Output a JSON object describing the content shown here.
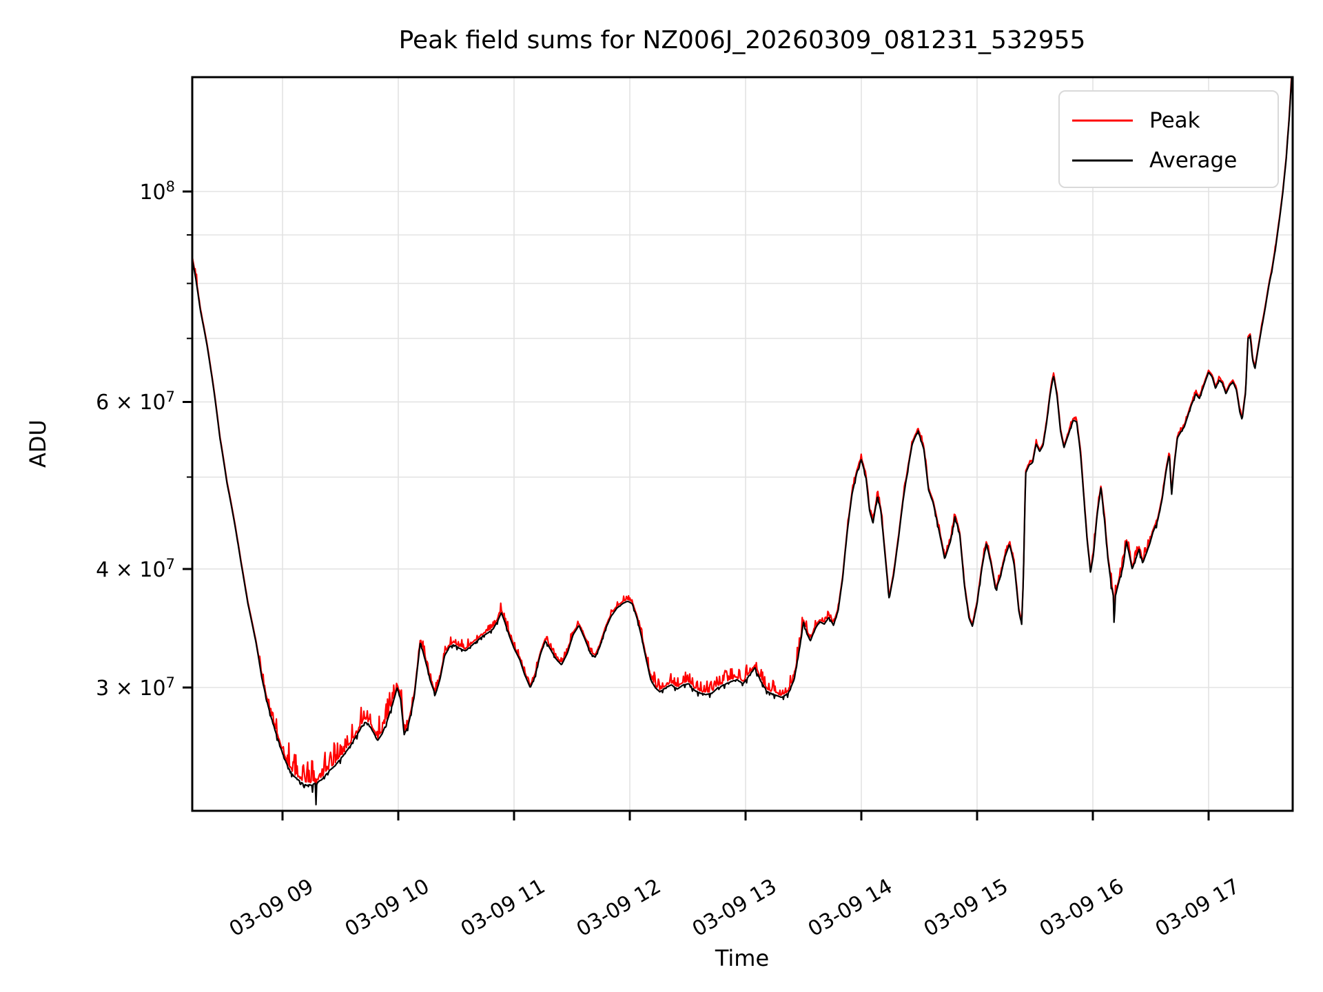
{
  "chart_data": {
    "type": "line",
    "title": "Peak field sums for NZ006J_20260309_081231_532955",
    "xlabel": "Time",
    "ylabel": "ADU",
    "y_scale": "log",
    "grid": true,
    "legend_position": "upper right",
    "x_range_hours": [
      8.215,
      17.72
    ],
    "y_range_adu": [
      22200000.0,
      132000000.0
    ],
    "x_ticks": [
      {
        "t": 9,
        "label": "03-09 09"
      },
      {
        "t": 10,
        "label": "03-09 10"
      },
      {
        "t": 11,
        "label": "03-09 11"
      },
      {
        "t": 12,
        "label": "03-09 12"
      },
      {
        "t": 13,
        "label": "03-09 13"
      },
      {
        "t": 14,
        "label": "03-09 14"
      },
      {
        "t": 15,
        "label": "03-09 15"
      },
      {
        "t": 16,
        "label": "03-09 16"
      },
      {
        "t": 17,
        "label": "03-09 17"
      }
    ],
    "y_ticks_major": [
      {
        "v7": 10,
        "text": "10",
        "sup": "8"
      },
      {
        "v7": 6,
        "text": "6 × 10",
        "sup": "7"
      },
      {
        "v7": 4,
        "text": "4 × 10",
        "sup": "7"
      },
      {
        "v7": 3,
        "text": "3 × 10",
        "sup": "7"
      }
    ],
    "y_ticks_minor_v7": [
      9,
      8,
      7,
      5
    ],
    "y_gridlines_v7": [
      3,
      4,
      5,
      6,
      7,
      8,
      9,
      10
    ],
    "series": [
      {
        "name": "Peak",
        "color": "#ff0000"
      },
      {
        "name": "Average",
        "color": "#000000"
      }
    ],
    "average_control_points_t_v7": [
      [
        8.215,
        8.55
      ],
      [
        8.25,
        8.1
      ],
      [
        8.29,
        7.5
      ],
      [
        8.35,
        6.86
      ],
      [
        8.41,
        6.13
      ],
      [
        8.46,
        5.49
      ],
      [
        8.52,
        4.93
      ],
      [
        8.59,
        4.44
      ],
      [
        8.64,
        4.07
      ],
      [
        8.7,
        3.68
      ],
      [
        8.77,
        3.35
      ],
      [
        8.82,
        3.08
      ],
      [
        8.86,
        2.92
      ],
      [
        8.9,
        2.8
      ],
      [
        8.95,
        2.67
      ],
      [
        9.0,
        2.56
      ],
      [
        9.05,
        2.47
      ],
      [
        9.1,
        2.42
      ],
      [
        9.15,
        2.39
      ],
      [
        9.2,
        2.37
      ],
      [
        9.25,
        2.37
      ],
      [
        9.285,
        2.38
      ],
      [
        9.29,
        2.27
      ],
      [
        9.295,
        2.38
      ],
      [
        9.35,
        2.41
      ],
      [
        9.4,
        2.45
      ],
      [
        9.45,
        2.48
      ],
      [
        9.52,
        2.54
      ],
      [
        9.58,
        2.6
      ],
      [
        9.63,
        2.66
      ],
      [
        9.67,
        2.71
      ],
      [
        9.7,
        2.76
      ],
      [
        9.74,
        2.75
      ],
      [
        9.78,
        2.7
      ],
      [
        9.82,
        2.64
      ],
      [
        9.86,
        2.68
      ],
      [
        9.9,
        2.76
      ],
      [
        9.95,
        2.88
      ],
      [
        9.99,
        3.0
      ],
      [
        10.02,
        2.92
      ],
      [
        10.05,
        2.68
      ],
      [
        10.08,
        2.72
      ],
      [
        10.11,
        2.82
      ],
      [
        10.14,
        2.95
      ],
      [
        10.17,
        3.18
      ],
      [
        10.19,
        3.35
      ],
      [
        10.22,
        3.25
      ],
      [
        10.25,
        3.15
      ],
      [
        10.28,
        3.04
      ],
      [
        10.32,
        2.95
      ],
      [
        10.36,
        3.06
      ],
      [
        10.4,
        3.24
      ],
      [
        10.44,
        3.31
      ],
      [
        10.48,
        3.33
      ],
      [
        10.53,
        3.3
      ],
      [
        10.58,
        3.28
      ],
      [
        10.63,
        3.32
      ],
      [
        10.68,
        3.36
      ],
      [
        10.73,
        3.4
      ],
      [
        10.78,
        3.43
      ],
      [
        10.82,
        3.46
      ],
      [
        10.86,
        3.53
      ],
      [
        10.89,
        3.6
      ],
      [
        10.92,
        3.52
      ],
      [
        10.96,
        3.4
      ],
      [
        11.0,
        3.3
      ],
      [
        11.05,
        3.21
      ],
      [
        11.09,
        3.1
      ],
      [
        11.14,
        3.0
      ],
      [
        11.18,
        3.08
      ],
      [
        11.23,
        3.26
      ],
      [
        11.27,
        3.36
      ],
      [
        11.31,
        3.3
      ],
      [
        11.36,
        3.22
      ],
      [
        11.41,
        3.17
      ],
      [
        11.46,
        3.26
      ],
      [
        11.51,
        3.41
      ],
      [
        11.56,
        3.49
      ],
      [
        11.61,
        3.38
      ],
      [
        11.66,
        3.26
      ],
      [
        11.7,
        3.23
      ],
      [
        11.74,
        3.31
      ],
      [
        11.79,
        3.46
      ],
      [
        11.84,
        3.57
      ],
      [
        11.89,
        3.64
      ],
      [
        11.94,
        3.68
      ],
      [
        11.98,
        3.7
      ],
      [
        12.02,
        3.68
      ],
      [
        12.06,
        3.56
      ],
      [
        12.1,
        3.4
      ],
      [
        12.14,
        3.22
      ],
      [
        12.18,
        3.06
      ],
      [
        12.22,
        3.0
      ],
      [
        12.26,
        2.97
      ],
      [
        12.31,
        3.0
      ],
      [
        12.36,
        3.02
      ],
      [
        12.41,
        2.99
      ],
      [
        12.46,
        3.02
      ],
      [
        12.51,
        3.03
      ],
      [
        12.56,
        2.98
      ],
      [
        12.61,
        2.96
      ],
      [
        12.66,
        2.95
      ],
      [
        12.71,
        2.96
      ],
      [
        12.76,
        3.0
      ],
      [
        12.81,
        3.02
      ],
      [
        12.86,
        3.04
      ],
      [
        12.92,
        3.06
      ],
      [
        12.98,
        3.03
      ],
      [
        13.04,
        3.1
      ],
      [
        13.08,
        3.15
      ],
      [
        13.13,
        3.05
      ],
      [
        13.19,
        2.97
      ],
      [
        13.25,
        2.95
      ],
      [
        13.31,
        2.93
      ],
      [
        13.37,
        2.96
      ],
      [
        13.42,
        3.06
      ],
      [
        13.47,
        3.32
      ],
      [
        13.5,
        3.52
      ],
      [
        13.53,
        3.42
      ],
      [
        13.56,
        3.36
      ],
      [
        13.6,
        3.46
      ],
      [
        13.64,
        3.52
      ],
      [
        13.68,
        3.5
      ],
      [
        13.72,
        3.56
      ],
      [
        13.76,
        3.49
      ],
      [
        13.8,
        3.62
      ],
      [
        13.84,
        3.92
      ],
      [
        13.88,
        4.4
      ],
      [
        13.92,
        4.8
      ],
      [
        13.96,
        5.05
      ],
      [
        14.0,
        5.22
      ],
      [
        14.04,
        5.0
      ],
      [
        14.07,
        4.62
      ],
      [
        14.1,
        4.47
      ],
      [
        14.14,
        4.78
      ],
      [
        14.17,
        4.6
      ],
      [
        14.2,
        4.2
      ],
      [
        14.24,
        3.72
      ],
      [
        14.28,
        3.95
      ],
      [
        14.32,
        4.3
      ],
      [
        14.36,
        4.72
      ],
      [
        14.4,
        5.08
      ],
      [
        14.44,
        5.42
      ],
      [
        14.49,
        5.6
      ],
      [
        14.54,
        5.35
      ],
      [
        14.58,
        4.85
      ],
      [
        14.62,
        4.7
      ],
      [
        14.67,
        4.4
      ],
      [
        14.72,
        4.1
      ],
      [
        14.77,
        4.28
      ],
      [
        14.81,
        4.55
      ],
      [
        14.85,
        4.35
      ],
      [
        14.89,
        3.85
      ],
      [
        14.93,
        3.55
      ],
      [
        14.96,
        3.48
      ],
      [
        15.0,
        3.68
      ],
      [
        15.04,
        4.0
      ],
      [
        15.08,
        4.26
      ],
      [
        15.12,
        4.06
      ],
      [
        15.16,
        3.8
      ],
      [
        15.2,
        3.92
      ],
      [
        15.24,
        4.12
      ],
      [
        15.28,
        4.25
      ],
      [
        15.32,
        4.05
      ],
      [
        15.36,
        3.62
      ],
      [
        15.385,
        3.5
      ],
      [
        15.4,
        3.9
      ],
      [
        15.42,
        5.05
      ],
      [
        15.45,
        5.15
      ],
      [
        15.48,
        5.18
      ],
      [
        15.51,
        5.42
      ],
      [
        15.54,
        5.32
      ],
      [
        15.57,
        5.4
      ],
      [
        15.6,
        5.7
      ],
      [
        15.63,
        6.1
      ],
      [
        15.66,
        6.4
      ],
      [
        15.69,
        6.1
      ],
      [
        15.72,
        5.6
      ],
      [
        15.75,
        5.37
      ],
      [
        15.79,
        5.55
      ],
      [
        15.83,
        5.74
      ],
      [
        15.86,
        5.72
      ],
      [
        15.89,
        5.35
      ],
      [
        15.92,
        4.8
      ],
      [
        15.95,
        4.3
      ],
      [
        15.98,
        3.96
      ],
      [
        16.01,
        4.2
      ],
      [
        16.04,
        4.6
      ],
      [
        16.07,
        4.88
      ],
      [
        16.1,
        4.52
      ],
      [
        16.13,
        4.1
      ],
      [
        16.16,
        3.85
      ],
      [
        16.178,
        3.74
      ],
      [
        16.185,
        3.45
      ],
      [
        16.192,
        3.74
      ],
      [
        16.22,
        3.86
      ],
      [
        16.26,
        4.02
      ],
      [
        16.29,
        4.28
      ],
      [
        16.32,
        4.12
      ],
      [
        16.34,
        4.0
      ],
      [
        16.37,
        4.1
      ],
      [
        16.4,
        4.2
      ],
      [
        16.43,
        4.06
      ],
      [
        16.46,
        4.15
      ],
      [
        16.49,
        4.25
      ],
      [
        16.52,
        4.38
      ],
      [
        16.56,
        4.5
      ],
      [
        16.6,
        4.75
      ],
      [
        16.63,
        5.05
      ],
      [
        16.66,
        5.3
      ],
      [
        16.68,
        4.78
      ],
      [
        16.7,
        5.1
      ],
      [
        16.73,
        5.5
      ],
      [
        16.76,
        5.58
      ],
      [
        16.79,
        5.65
      ],
      [
        16.82,
        5.8
      ],
      [
        16.85,
        5.95
      ],
      [
        16.89,
        6.12
      ],
      [
        16.92,
        6.05
      ],
      [
        16.96,
        6.25
      ],
      [
        17.0,
        6.45
      ],
      [
        17.03,
        6.38
      ],
      [
        17.06,
        6.2
      ],
      [
        17.09,
        6.33
      ],
      [
        17.12,
        6.28
      ],
      [
        17.15,
        6.12
      ],
      [
        17.18,
        6.24
      ],
      [
        17.21,
        6.3
      ],
      [
        17.24,
        6.18
      ],
      [
        17.27,
        5.85
      ],
      [
        17.29,
        5.75
      ],
      [
        17.32,
        6.15
      ],
      [
        17.34,
        7.0
      ],
      [
        17.36,
        7.05
      ],
      [
        17.38,
        6.65
      ],
      [
        17.4,
        6.5
      ],
      [
        17.43,
        6.85
      ],
      [
        17.46,
        7.2
      ],
      [
        17.49,
        7.55
      ],
      [
        17.52,
        7.95
      ],
      [
        17.55,
        8.3
      ],
      [
        17.58,
        8.75
      ],
      [
        17.61,
        9.3
      ],
      [
        17.64,
        9.95
      ],
      [
        17.67,
        10.8
      ],
      [
        17.695,
        11.9
      ],
      [
        17.72,
        13.3
      ]
    ],
    "noise_regions": [
      {
        "t0": 8.215,
        "t1": 8.3,
        "up": 0.02,
        "down": 0.0,
        "density": 0.5
      },
      {
        "t0": 8.8,
        "t1": 9.05,
        "up": 0.035,
        "down": 0.015,
        "density": 0.5
      },
      {
        "t0": 9.05,
        "t1": 9.45,
        "up": 0.06,
        "down": 0.02,
        "density": 0.6
      },
      {
        "t0": 9.45,
        "t1": 10.05,
        "up": 0.05,
        "down": 0.012,
        "density": 0.55
      },
      {
        "t0": 10.05,
        "t1": 10.95,
        "up": 0.022,
        "down": 0.008,
        "density": 0.4
      },
      {
        "t0": 10.95,
        "t1": 12.1,
        "up": 0.015,
        "down": 0.006,
        "density": 0.35
      },
      {
        "t0": 12.1,
        "t1": 13.55,
        "up": 0.03,
        "down": 0.01,
        "density": 0.55
      },
      {
        "t0": 13.55,
        "t1": 14.05,
        "up": 0.015,
        "down": 0.006,
        "density": 0.4
      },
      {
        "t0": 14.05,
        "t1": 15.4,
        "up": 0.012,
        "down": 0.008,
        "density": 0.3
      },
      {
        "t0": 15.4,
        "t1": 16.0,
        "up": 0.008,
        "down": 0.004,
        "density": 0.3
      },
      {
        "t0": 16.0,
        "t1": 16.55,
        "up": 0.022,
        "down": 0.012,
        "density": 0.5
      },
      {
        "t0": 16.55,
        "t1": 17.72,
        "up": 0.007,
        "down": 0.004,
        "density": 0.25
      }
    ],
    "colors": {
      "peak": "#ff0000",
      "average": "#000000",
      "grid": "#e3e3e3",
      "frame": "#000000",
      "legend_border": "#d9d9d9",
      "background": "#ffffff"
    }
  },
  "legend": {
    "items": [
      {
        "label": "Peak",
        "color": "#ff0000"
      },
      {
        "label": "Average",
        "color": "#000000"
      }
    ]
  }
}
